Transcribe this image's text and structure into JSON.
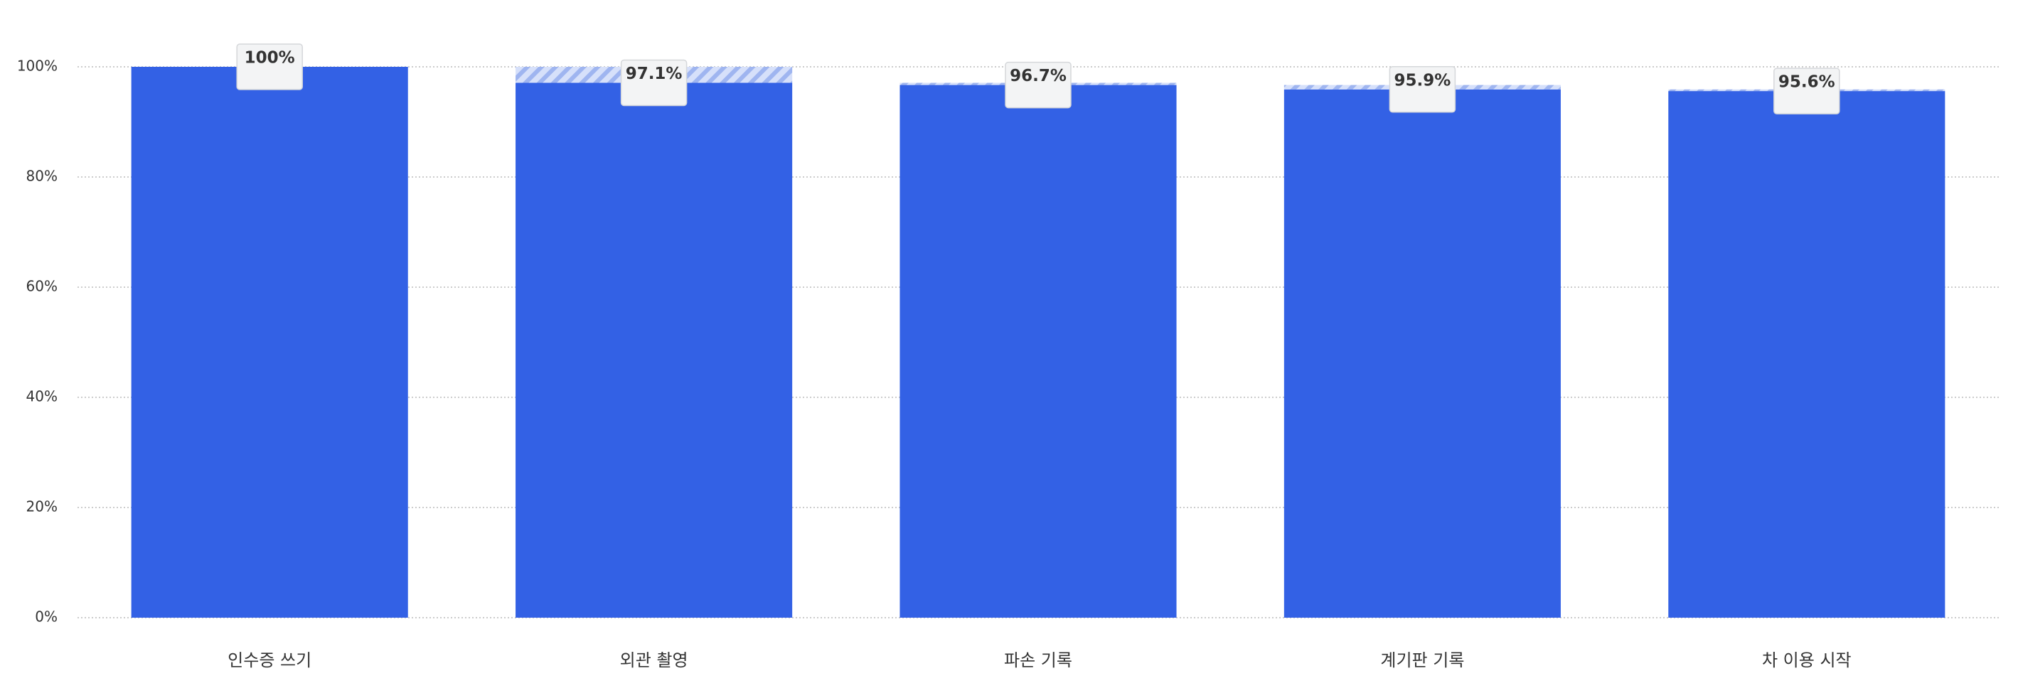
{
  "chart_data": {
    "type": "bar",
    "categories": [
      "인수증 쓰기",
      "외관 촬영",
      "파손 기록",
      "계기판 기록",
      "차 이용 시작"
    ],
    "series": [
      {
        "values": [
          100,
          97.1,
          96.7,
          95.9,
          95.6
        ],
        "value_labels": [
          "100%",
          "97.1%",
          "96.7%",
          "95.9%",
          "95.6%"
        ],
        "color": "#3361e5"
      },
      {
        "values": [
          null,
          2.9,
          0.4,
          0.8,
          0.3
        ],
        "color": "#b3c4f3",
        "hatched": true
      }
    ],
    "stacked": true,
    "ylim": [
      0,
      100
    ],
    "yticks": [
      {
        "value": 0,
        "label": "0%"
      },
      {
        "value": 20,
        "label": "20%"
      },
      {
        "value": 40,
        "label": "40%"
      },
      {
        "value": 60,
        "label": "60%"
      },
      {
        "value": 80,
        "label": "80%"
      },
      {
        "value": 100,
        "label": "100%"
      }
    ],
    "grid": true
  }
}
